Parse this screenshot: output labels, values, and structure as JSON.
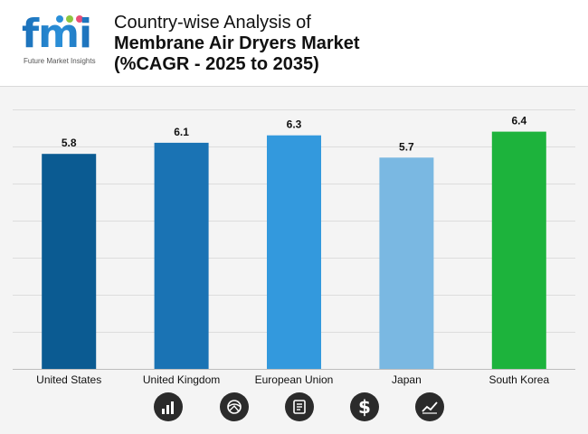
{
  "header": {
    "logo_text": "fmi",
    "logo_subtitle": "Future Market Insights",
    "title_line1": "Country-wise Analysis of",
    "title_line2": "Membrane Air Dryers Market",
    "title_line3": "(%CAGR - 2025 to 2035)"
  },
  "chart_data": {
    "type": "bar",
    "title": "Country-wise Analysis of Membrane Air Dryers Market (%CAGR - 2025 to 2035)",
    "categories": [
      "United States",
      "United Kingdom",
      "European Union",
      "Japan",
      "South Korea"
    ],
    "values": [
      5.8,
      6.1,
      6.3,
      5.7,
      6.4
    ],
    "value_labels": [
      "5.8",
      "6.1",
      "6.3",
      "5.7",
      "6.4"
    ],
    "colors": [
      "#0b5b92",
      "#1a73b4",
      "#3399dd",
      "#7ab8e2",
      "#1db33c"
    ],
    "xlabel": "",
    "ylabel": "",
    "ylim": [
      0,
      7
    ],
    "grid": true
  },
  "footer": {
    "icons": [
      "bar-chart-icon",
      "globe-icon",
      "document-icon",
      "dollar-icon",
      "line-chart-icon"
    ],
    "dollar_glyph": "$"
  },
  "colors": {
    "background": "#f4f4f4",
    "grid": "#dddddd",
    "icon_bg": "#2b2b2b"
  }
}
